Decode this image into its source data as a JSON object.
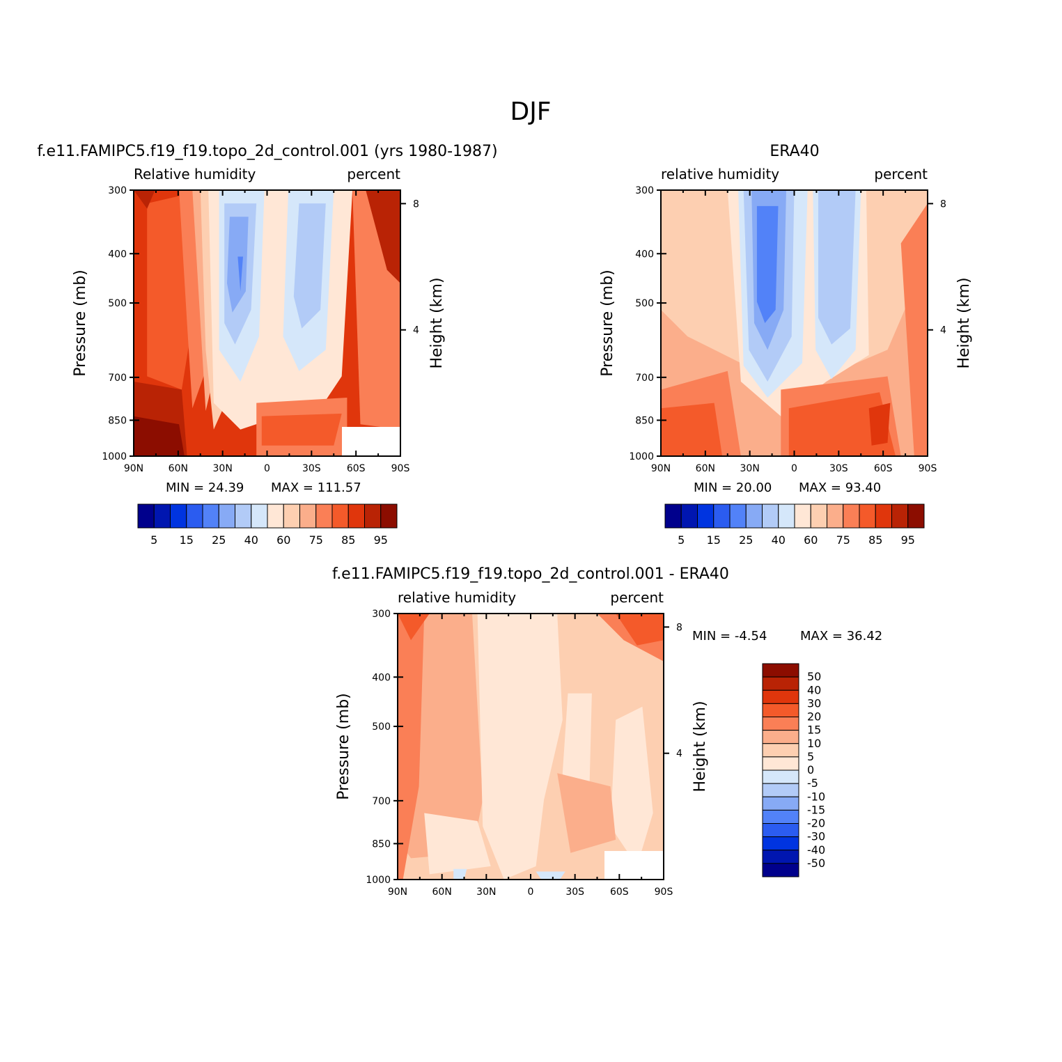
{
  "figure": {
    "title": "DJF"
  },
  "colors": {
    "rh_levels": [
      "#00008c",
      "#0016b0",
      "#0034e0",
      "#2b5cf0",
      "#5282f8",
      "#87aaf5",
      "#b2cbf7",
      "#d5e7fa",
      "#ffe7d6",
      "#fdcfb1",
      "#fbae8b",
      "#fa7f56",
      "#f45a2a",
      "#e0360c",
      "#b92305",
      "#8c0d00"
    ],
    "diff_levels": [
      "#00008c",
      "#0016b0",
      "#0034e0",
      "#2b5cf0",
      "#5282f8",
      "#87aaf5",
      "#b2cbf7",
      "#d5e7fa",
      "#ffe7d6",
      "#fdcfb1",
      "#fbae8b",
      "#fa7f56",
      "#f45a2a",
      "#e0360c",
      "#b92305",
      "#8c0d00"
    ],
    "axis": "#000000",
    "missing": "#ffffff"
  },
  "chart_data": [
    {
      "id": "model",
      "type": "contour",
      "title": "f.e11.FAMIPC5.f19_f19.topo_2d_control.001 (yrs 1980-1987)",
      "left_label": "Relative humidity",
      "right_label": "percent",
      "ylabel": "Pressure (mb)",
      "y2label": "Height (km)",
      "x_ticks": [
        "90N",
        "60N",
        "30N",
        "0",
        "30S",
        "60S",
        "90S"
      ],
      "x_range": [
        90,
        -90
      ],
      "y_ticks": [
        300,
        400,
        500,
        700,
        850,
        1000
      ],
      "y_range": [
        300,
        1000
      ],
      "y2_ticks": [
        8,
        4
      ],
      "min_text": "MIN =   24.39",
      "max_text": "MAX = 111.57",
      "min": 24.39,
      "max": 111.57,
      "colorbar_labels": [
        "5",
        "15",
        "25",
        "40",
        "60",
        "75",
        "85",
        "95"
      ],
      "colorbar_levels": [
        5,
        10,
        15,
        20,
        25,
        30,
        40,
        50,
        60,
        65,
        75,
        80,
        85,
        90,
        95
      ]
    },
    {
      "id": "obs",
      "type": "contour",
      "title": "ERA40",
      "left_label": "relative humidity",
      "right_label": "percent",
      "ylabel": "Pressure (mb)",
      "y2label": "Height (km)",
      "x_ticks": [
        "90N",
        "60N",
        "30N",
        "0",
        "30S",
        "60S",
        "90S"
      ],
      "x_range": [
        90,
        -90
      ],
      "y_ticks": [
        300,
        400,
        500,
        700,
        850,
        1000
      ],
      "y_range": [
        300,
        1000
      ],
      "y2_ticks": [
        8,
        4
      ],
      "min_text": "MIN =   20.00",
      "max_text": "MAX =   93.40",
      "min": 20.0,
      "max": 93.4,
      "colorbar_labels": [
        "5",
        "15",
        "25",
        "40",
        "60",
        "75",
        "85",
        "95"
      ],
      "colorbar_levels": [
        5,
        10,
        15,
        20,
        25,
        30,
        40,
        50,
        60,
        65,
        75,
        80,
        85,
        90,
        95
      ]
    },
    {
      "id": "diff",
      "type": "contour",
      "title": "f.e11.FAMIPC5.f19_f19.topo_2d_control.001 - ERA40",
      "left_label": "relative humidity",
      "right_label": "percent",
      "ylabel": "Pressure (mb)",
      "y2label": "Height (km)",
      "x_ticks": [
        "90N",
        "60N",
        "30N",
        "0",
        "30S",
        "60S",
        "90S"
      ],
      "x_range": [
        90,
        -90
      ],
      "y_ticks": [
        300,
        400,
        500,
        700,
        850,
        1000
      ],
      "y_range": [
        300,
        1000
      ],
      "y2_ticks": [
        8,
        4
      ],
      "min_text": "MIN =   -4.54",
      "max_text": "MAX =   36.42",
      "min": -4.54,
      "max": 36.42,
      "colorbar_labels": [
        "50",
        "40",
        "30",
        "20",
        "15",
        "10",
        "5",
        "0",
        "-5",
        "-10",
        "-15",
        "-20",
        "-30",
        "-40",
        "-50"
      ],
      "colorbar_levels": [
        50,
        40,
        30,
        20,
        15,
        10,
        5,
        0,
        -5,
        -10,
        -15,
        -20,
        -30,
        -40,
        -50
      ]
    }
  ]
}
